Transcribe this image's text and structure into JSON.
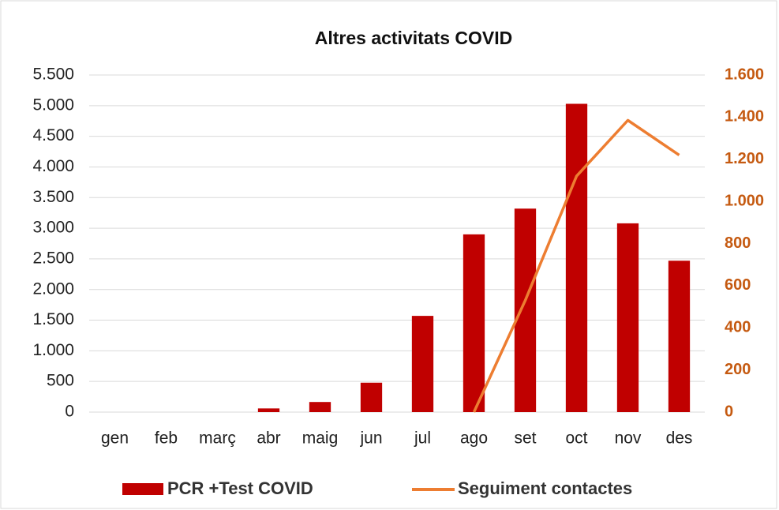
{
  "chart_data": {
    "type": "bar",
    "title": "Altres activitats COVID",
    "categories": [
      "gen",
      "feb",
      "març",
      "abr",
      "maig",
      "jun",
      "jul",
      "ago",
      "set",
      "oct",
      "nov",
      "des"
    ],
    "series": [
      {
        "name": "PCR +Test COVID",
        "type": "bar",
        "color": "#c00000",
        "values": [
          0,
          0,
          0,
          60,
          165,
          480,
          1570,
          2900,
          3320,
          5030,
          3080,
          2470
        ]
      },
      {
        "name": "Seguiment contactes",
        "type": "line",
        "axis": "y2",
        "color": "#ed7d31",
        "values": [
          null,
          null,
          null,
          null,
          null,
          null,
          null,
          0,
          530,
          1120,
          1385,
          1220
        ]
      }
    ],
    "ylim": [
      0,
      5500
    ],
    "yticks": [
      0,
      {
        "value": 500,
        "label": "500"
      },
      {
        "value": 1000,
        "label": "1.000"
      },
      {
        "value": 1500,
        "label": "1.500"
      },
      {
        "value": 2000,
        "label": "2.000"
      },
      {
        "value": 2500,
        "label": "2.500"
      },
      {
        "value": 3000,
        "label": "3.000"
      },
      {
        "value": 3500,
        "label": "3.500"
      },
      {
        "value": 4000,
        "label": "4.000"
      },
      {
        "value": 4500,
        "label": "4.500"
      },
      {
        "value": 5000,
        "label": "5.000"
      },
      {
        "value": 5500,
        "label": "5.500"
      }
    ],
    "y2lim": [
      0,
      1600
    ],
    "y2ticks": [
      0,
      200,
      400,
      600,
      800,
      {
        "value": 1000,
        "label": "1.000"
      },
      {
        "value": 1200,
        "label": "1.200"
      },
      {
        "value": 1400,
        "label": "1.400"
      },
      {
        "value": 1600,
        "label": "1.600"
      }
    ],
    "grid": true,
    "legend": "bottom"
  }
}
